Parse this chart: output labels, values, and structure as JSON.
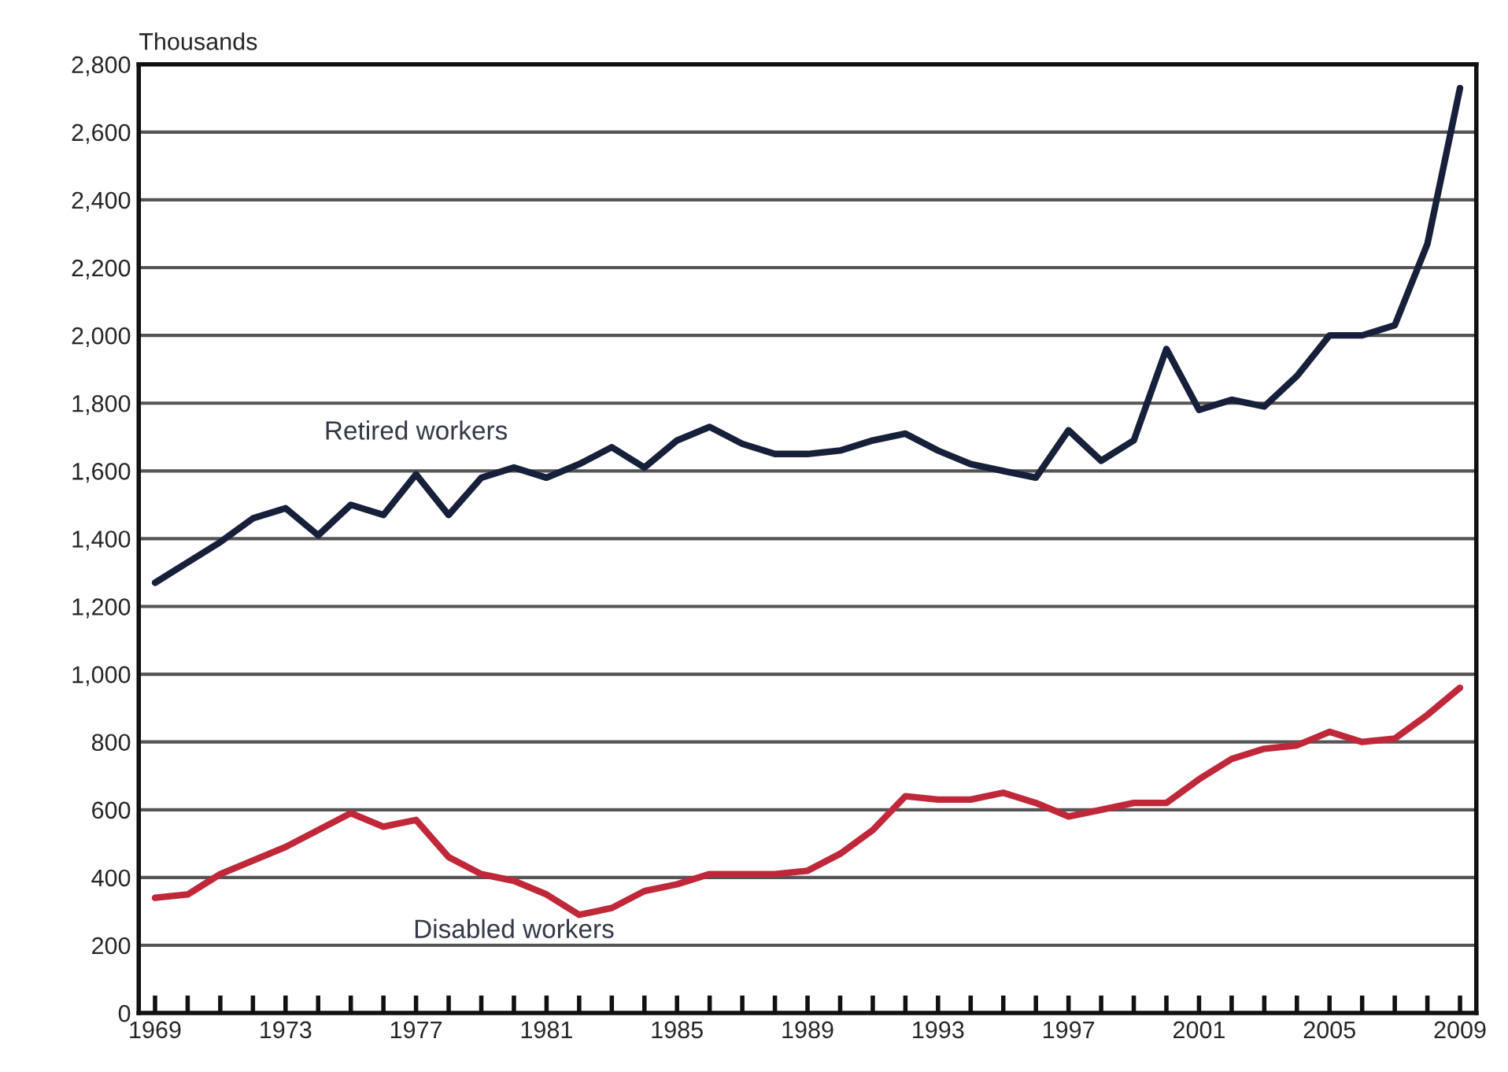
{
  "chart_data": {
    "type": "line",
    "ylabel": "Thousands",
    "x": [
      1969,
      1970,
      1971,
      1972,
      1973,
      1974,
      1975,
      1976,
      1977,
      1978,
      1979,
      1980,
      1981,
      1982,
      1983,
      1984,
      1985,
      1986,
      1987,
      1988,
      1989,
      1990,
      1991,
      1992,
      1993,
      1994,
      1995,
      1996,
      1997,
      1998,
      1999,
      2000,
      2001,
      2002,
      2003,
      2004,
      2005,
      2006,
      2007,
      2008,
      2009
    ],
    "series": [
      {
        "name": "Retired workers",
        "color": "#17203a",
        "values": [
          1270,
          1330,
          1390,
          1460,
          1490,
          1410,
          1500,
          1470,
          1590,
          1470,
          1580,
          1610,
          1580,
          1620,
          1670,
          1610,
          1690,
          1730,
          1680,
          1650,
          1650,
          1660,
          1690,
          1710,
          1660,
          1620,
          1600,
          1580,
          1720,
          1630,
          1690,
          1960,
          1780,
          1810,
          1790,
          1880,
          2000,
          2000,
          2030,
          2270,
          2730
        ]
      },
      {
        "name": "Disabled workers",
        "color": "#c0283a",
        "values": [
          340,
          350,
          410,
          450,
          490,
          540,
          590,
          550,
          570,
          460,
          410,
          390,
          350,
          290,
          310,
          360,
          380,
          410,
          410,
          410,
          420,
          470,
          540,
          640,
          630,
          630,
          650,
          620,
          580,
          600,
          620,
          620,
          690,
          750,
          780,
          790,
          830,
          800,
          810,
          880,
          960
        ]
      }
    ],
    "xlim": [
      1968.5,
      2009.5
    ],
    "xticks": [
      1969,
      {
        "value": 1970,
        "label": null
      },
      {
        "value": 1971,
        "label": null
      },
      {
        "value": 1972,
        "label": null
      },
      1973,
      {
        "value": 1974,
        "label": null
      },
      {
        "value": 1975,
        "label": null
      },
      {
        "value": 1976,
        "label": null
      },
      1977,
      {
        "value": 1978,
        "label": null
      },
      {
        "value": 1979,
        "label": null
      },
      {
        "value": 1980,
        "label": null
      },
      1981,
      {
        "value": 1982,
        "label": null
      },
      {
        "value": 1983,
        "label": null
      },
      {
        "value": 1984,
        "label": null
      },
      1985,
      {
        "value": 1986,
        "label": null
      },
      {
        "value": 1987,
        "label": null
      },
      {
        "value": 1988,
        "label": null
      },
      1989,
      {
        "value": 1990,
        "label": null
      },
      {
        "value": 1991,
        "label": null
      },
      {
        "value": 1992,
        "label": null
      },
      1993,
      {
        "value": 1994,
        "label": null
      },
      {
        "value": 1995,
        "label": null
      },
      {
        "value": 1996,
        "label": null
      },
      1997,
      {
        "value": 1998,
        "label": null
      },
      {
        "value": 1999,
        "label": null
      },
      {
        "value": 2000,
        "label": null
      },
      2001,
      {
        "value": 2002,
        "label": null
      },
      {
        "value": 2003,
        "label": null
      },
      {
        "value": 2004,
        "label": null
      },
      2005,
      {
        "value": 2006,
        "label": null
      },
      {
        "value": 2007,
        "label": null
      },
      {
        "value": 2008,
        "label": null
      },
      2009
    ],
    "ylim": [
      0,
      2800
    ],
    "yticks": [
      0,
      200,
      400,
      {
        "value": 600,
        "label": "600"
      },
      800,
      {
        "value": 1000,
        "label": "1,000"
      },
      {
        "value": 1200,
        "label": "1,200"
      },
      {
        "value": 1400,
        "label": "1,400"
      },
      {
        "value": 1600,
        "label": "1,600"
      },
      {
        "value": 1800,
        "label": "1,800"
      },
      {
        "value": 2000,
        "label": "2,000"
      },
      {
        "value": 2200,
        "label": "2,200"
      },
      {
        "value": 2400,
        "label": "2,400"
      },
      {
        "value": 2600,
        "label": "2,600"
      },
      {
        "value": 2800,
        "label": "2,800"
      }
    ],
    "grid": "y",
    "legend": false,
    "line_style": "solid",
    "marker": "none"
  }
}
